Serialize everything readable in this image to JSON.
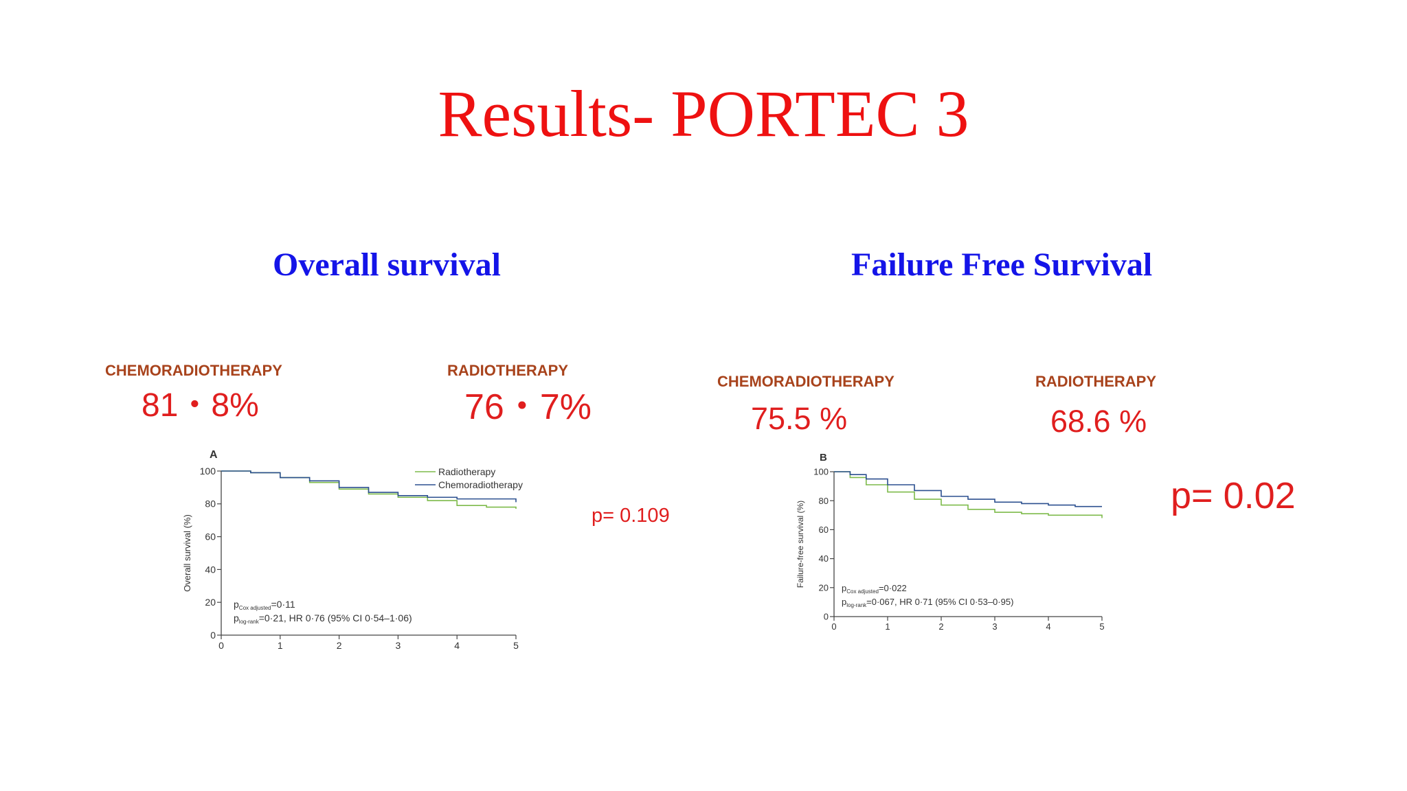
{
  "slide": {
    "title": "Results- PORTEC 3"
  },
  "panels": [
    {
      "heading": "Overall survival",
      "arm_left": {
        "label": "CHEMORADIOTHERAPY",
        "rate": "81・8%"
      },
      "arm_right": {
        "label": "RADIOTHERAPY",
        "rate": "76・7%"
      },
      "p_value": "p= 0.109"
    },
    {
      "heading": "Failure Free Survival",
      "arm_left": {
        "label": "CHEMORADIOTHERAPY",
        "rate": "75.5 %"
      },
      "arm_right": {
        "label": "RADIOTHERAPY",
        "rate": "68.6 %"
      },
      "p_value": "p= 0.02"
    }
  ],
  "colors": {
    "radiotherapy": "#7dba4a",
    "chemoradiotherapy": "#2b4f8f",
    "title": "#ee1111",
    "heading": "#1414e8"
  },
  "chart_data": [
    {
      "type": "line",
      "panel_letter": "A",
      "ylabel": "Overall survival (%)",
      "xlabel": "",
      "xlim": [
        0,
        5
      ],
      "ylim": [
        0,
        100
      ],
      "xticks": [
        0,
        1,
        2,
        3,
        4,
        5
      ],
      "yticks": [
        0,
        20,
        40,
        60,
        80,
        100
      ],
      "grid": false,
      "legend": "top-right",
      "series": [
        {
          "name": "Radiotherapy",
          "color": "#7dba4a",
          "x": [
            0,
            0.5,
            1.0,
            1.5,
            2.0,
            2.5,
            3.0,
            3.5,
            4.0,
            4.5,
            5.0
          ],
          "y": [
            100,
            99,
            96,
            93,
            89,
            86,
            84,
            82,
            79,
            78,
            77
          ]
        },
        {
          "name": "Chemoradiotherapy",
          "color": "#2b4f8f",
          "x": [
            0,
            0.5,
            1.0,
            1.5,
            2.0,
            2.5,
            3.0,
            3.5,
            4.0,
            4.5,
            5.0
          ],
          "y": [
            100,
            99,
            96,
            94,
            90,
            87,
            85,
            84,
            83,
            83,
            81
          ]
        }
      ],
      "annotations": [
        {
          "main": "p",
          "sub": "Cox adjusted",
          "rest": "=0·11"
        },
        {
          "main": "p",
          "sub": "log-rank",
          "rest": "=0·21, HR 0·76 (95% CI 0·54–1·06)"
        }
      ]
    },
    {
      "type": "line",
      "panel_letter": "B",
      "ylabel": "Failure-free survival (%)",
      "xlabel": "",
      "xlim": [
        0,
        5
      ],
      "ylim": [
        0,
        100
      ],
      "xticks": [
        0,
        1,
        2,
        3,
        4,
        5
      ],
      "yticks": [
        0,
        20,
        40,
        60,
        80,
        100
      ],
      "grid": false,
      "series": [
        {
          "name": "Radiotherapy",
          "color": "#7dba4a",
          "x": [
            0,
            0.3,
            0.6,
            1.0,
            1.5,
            2.0,
            2.5,
            3.0,
            3.5,
            4.0,
            4.5,
            5.0
          ],
          "y": [
            100,
            96,
            91,
            86,
            81,
            77,
            74,
            72,
            71,
            70,
            70,
            68
          ]
        },
        {
          "name": "Chemoradiotherapy",
          "color": "#2b4f8f",
          "x": [
            0,
            0.3,
            0.6,
            1.0,
            1.5,
            2.0,
            2.5,
            3.0,
            3.5,
            4.0,
            4.5,
            5.0
          ],
          "y": [
            100,
            98,
            95,
            91,
            87,
            83,
            81,
            79,
            78,
            77,
            76,
            76
          ]
        }
      ],
      "annotations": [
        {
          "main": "p",
          "sub": "Cox adjusted",
          "rest": "=0·022"
        },
        {
          "main": "p",
          "sub": "log-rank",
          "rest": "=0·067, HR 0·71 (95% CI 0·53–0·95)"
        }
      ]
    }
  ]
}
